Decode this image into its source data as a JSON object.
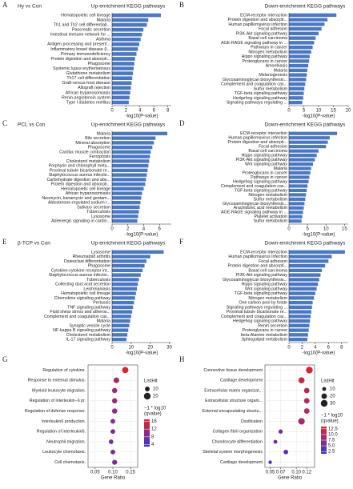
{
  "chart_data": [
    {
      "type": "bar",
      "label": "A",
      "group": "Hy vs Con",
      "title": "Up-enrichment KEGG pathways",
      "xlabel": "-log10(P-value)",
      "color": "#4a78c4",
      "categories": [
        "Hematopoietic cell lineage",
        "Malaria",
        "Th1 and Th2 cell differentiati...",
        "Pancreatic secretion",
        "Intestinal immune network for ...",
        "Asthma",
        "Antigen processing and present...",
        "Inflammatory bowel disease (I...",
        "Primary immunodeficiency",
        "Protein digestion and absorpti...",
        "Phagosome",
        "Systemic lupus erythematosus",
        "Glutathione metabolism",
        "Th17 cell differentiation",
        "Graft-versus-host disease",
        "Allograft rejection",
        "African trypanosomiasis",
        "Renin-angiotensin system",
        "Type I diabetes mellitus"
      ],
      "values": [
        7,
        5.2,
        5,
        4.5,
        4.3,
        4.1,
        3.9,
        3.7,
        3.5,
        3.3,
        3.2,
        3.1,
        3,
        2.9,
        2.8,
        2.7,
        2.6,
        2.5,
        2.4
      ],
      "xlim": [
        0,
        8.5
      ],
      "xticks": [
        0,
        2,
        4,
        6,
        8
      ]
    },
    {
      "type": "bar",
      "label": "B",
      "title": "Down-enrichment KEGG pathways",
      "xlabel": "-log10(P-value)",
      "color": "#4a78c4",
      "categories": [
        "ECM-receptor interaction",
        "Protein digestion and absorpti...",
        "Human papillomavirus infection",
        "Focal adhesion",
        "PI3K-Akt signaling pathway",
        "Basal cell carcinoma",
        "AGE-RAGE signaling pathway in ...",
        "Pathways in cancer",
        "Nitrogen metabolism",
        "Hippo signaling pathway",
        "Proteoglycans in cancer",
        "Amoebiasis",
        "Malaria",
        "Melanogenesis",
        "Glycosaminoglycan biosynthesis...",
        "Complement and coagulation cas...",
        "Sulfur metabolism",
        "TGF-beta signaling pathway",
        "Hedgehog signaling pathway",
        "Signaling pathways regulating ..."
      ],
      "values": [
        16,
        13,
        12,
        11,
        10,
        9,
        8.5,
        8,
        7.5,
        7,
        6.8,
        6.5,
        6.2,
        6,
        5.8,
        5.5,
        5.2,
        5,
        4.8,
        4.5
      ],
      "xlim": [
        0,
        20
      ],
      "xticks": [
        0,
        5,
        10,
        15,
        20
      ]
    },
    {
      "type": "bar",
      "label": "C",
      "group": "PCL vs Con",
      "title": "Up-enrichment KEGG pathways",
      "xlabel": "-log10(P-value)",
      "color": "#4a78c4",
      "categories": [
        "Malaria",
        "Bile secretion",
        "Mineral absorption",
        "Phagosome",
        "Cardiac muscle contraction",
        "Ferroptosis",
        "Cholesterol metabolism",
        "Porphyrin and chlorophyll meta...",
        "Proximal tubule bicarbonate re...",
        "Staphylococcus aureus infectio...",
        "Carbohydrate digestion and abs...",
        "Protein digestion and absorpti...",
        "Hematopoietic cell lineage",
        "African trypanosomiasis",
        "Neomycin, kanamycin and gentam...",
        "Aldosterone-regulated sodium r...",
        "Salivary secretion",
        "Tuberculosis",
        "Lysosome",
        "Adrenergic signaling in cardio..."
      ],
      "values": [
        7,
        5.5,
        5.3,
        5.1,
        4.9,
        4.8,
        4.7,
        4.6,
        4.5,
        4.4,
        4.3,
        4.2,
        4,
        3.8,
        3.7,
        3.6,
        3.5,
        3.4,
        3.3,
        3.2
      ],
      "xlim": [
        0,
        7.5
      ],
      "xticks": [
        0,
        2,
        4,
        6
      ]
    },
    {
      "type": "bar",
      "label": "D",
      "title": "Down-enrichment KEGG pathways",
      "xlabel": "-log10(P-value)",
      "color": "#4a78c4",
      "categories": [
        "ECM-receptor interaction",
        "Human papillomavirus infection",
        "Protein digestion and absorpti...",
        "Focal adhesion",
        "Basal cell carcinoma",
        "Hippo signaling pathway",
        "PI3K-Akt signaling pathway",
        "Wnt signaling pathway",
        "Malaria",
        "Proteoglycans in cancer",
        "Pathways in cancer",
        "Hedgehog signaling pathway",
        "Complement and coagulation cas...",
        "TGF-beta signaling pathway",
        "Nitrogen metabolism",
        "Sulfur metabolism",
        "Glycosaminoglycan biosynthesis...",
        "Arachidonic acid metabolism",
        "AGE-RAGE signaling pathway in ...",
        "Platelet activation",
        "Sulfur metabolism"
      ],
      "values": [
        13,
        11,
        10.5,
        10,
        8,
        7.5,
        7,
        6.5,
        6,
        5.8,
        5.5,
        5.3,
        5,
        4.8,
        4.6,
        4.4,
        4.2,
        4,
        3.8,
        3.6,
        3.4
      ],
      "xlim": [
        0,
        16
      ],
      "xticks": [
        0,
        5,
        10,
        15
      ]
    },
    {
      "type": "bar",
      "label": "E",
      "group": "β-TCP vs Con",
      "title": "Up-enrichment KEGG pathways",
      "xlabel": "-log10(P-value)",
      "color": "#4a78c4",
      "categories": [
        "Lysosome",
        "Rheumatoid arthritis",
        "Osteoclast differentiation",
        "Phagosome",
        "Cytokine-cytokine receptor int...",
        "Staphylococcus aureus infectio...",
        "Tuberculosis",
        "Collecting duct acid secretion",
        "Leishmaniasis",
        "Hematopoietic cell lineage",
        "Chemokine signaling pathway",
        "Pertussis",
        "TNF signaling pathway",
        "Fluid shear stress and atheros...",
        "Complement and coagulation cas...",
        "Malaria",
        "Synaptic vesicle cycle",
        "NF-kappa B signaling pathway",
        "Cholesterol metabolism",
        "IL-17 signaling pathway"
      ],
      "values": [
        27,
        20,
        18,
        17,
        16,
        15,
        14,
        13.5,
        13,
        12.5,
        12,
        11.5,
        11,
        10.5,
        10,
        9.5,
        9,
        8.5,
        8,
        7.5
      ],
      "xlim": [
        0,
        31
      ],
      "xticks": [
        0,
        10,
        20,
        30
      ]
    },
    {
      "type": "bar",
      "label": "F",
      "title": "Down-enrichment KEGG pathways",
      "xlabel": "-log10(P-value)",
      "color": "#4a78c4",
      "categories": [
        "ECM-receptor interaction",
        "Human papillomavirus infection",
        "Focal adhesion",
        "Protein digestion and absorpti...",
        "Basal cell carcinoma",
        "PI3K-Akt signaling pathway",
        "Glycosaminoglycan biosynthesis...",
        "Hippo signaling pathway",
        "Wnt signaling pathway",
        "TGF-beta signaling pathway",
        "Nitrogen metabolism",
        "One carbon pool by folate",
        "Signaling pathways regulating ...",
        "Proximal tubule bicarbonate re...",
        "Complement and coagulation cas...",
        "Hedgehog signaling pathway",
        "Renin secretion",
        "Proteoglycans in cancer",
        "beta-Alanine metabolism",
        "Sphingolipid metabolism"
      ],
      "values": [
        8.5,
        6.5,
        6,
        5.5,
        5,
        4.8,
        4.6,
        4.4,
        4.2,
        4,
        3.8,
        3.6,
        3.5,
        3.4,
        3.3,
        3.2,
        3.1,
        3,
        2.9,
        2.8
      ],
      "xlim": [
        0,
        9
      ],
      "xticks": [
        0,
        2,
        4,
        6,
        8
      ]
    },
    {
      "type": "dot",
      "label": "G",
      "xlabel": "Gene Ratio",
      "grid": true,
      "categories": [
        "Regulation of cytokine.",
        "Response to external stimulus.",
        "Myeloid leukocyte migration.",
        "Regulation of interleukin−6 pr.",
        "Regulation of defense response.",
        "Interleukin6 production.",
        "Regulation of interleukin6.",
        "Neutrophil migration.",
        "Leukocyte chemotaxis.",
        "Cell chemotaxis."
      ],
      "values": [
        0.135,
        0.11,
        0.105,
        0.105,
        0.105,
        0.1,
        0.1,
        0.095,
        0.1,
        0.105
      ],
      "sizes": [
        17,
        14,
        12,
        12,
        12,
        10,
        10,
        9,
        10,
        11
      ],
      "qvalues": [
        16,
        12,
        11,
        11,
        10,
        9,
        9,
        8,
        8,
        8
      ],
      "xlim": [
        0.03,
        0.17
      ],
      "xticks": [
        0.05,
        {
          "value": 0.1,
          "label": "0.10"
        },
        0.15
      ],
      "size_title": "ListHit",
      "size_ticks": [
        10,
        20
      ],
      "color_title": [
        "−1 * log10",
        "(qvalue)"
      ],
      "colors": [
        "#e8232a",
        "#3434d6"
      ],
      "clim": [
        3,
        17
      ],
      "color_ticks": [
        16,
        12,
        8,
        4
      ]
    },
    {
      "type": "dot",
      "label": "H",
      "xlabel": "Gene Ratio",
      "grid": true,
      "categories": [
        "Connective tissue development",
        "Cartilage development",
        "Extracellular matrix organizat...",
        "Extracellular structure organi...",
        "External encapsulating structu...",
        "Ossification",
        "Collagen fibril organization",
        "Chondrocyte differentiation",
        "Skeletal system morphogenesis",
        "Cartilage development"
      ],
      "values": [
        0.125,
        0.11,
        0.12,
        0.12,
        0.12,
        0.11,
        0.07,
        0.06,
        0.08,
        0.05
      ],
      "sizes": [
        30,
        25,
        20,
        20,
        20,
        28,
        12,
        10,
        14,
        8
      ],
      "qvalues": [
        12.5,
        11,
        10,
        10,
        10,
        9,
        6,
        5,
        4,
        3
      ],
      "xlim": [
        0.04,
        0.135
      ],
      "xticks": [
        0.05,
        0.07,
        {
          "value": 0.1,
          "label": "0.10"
        },
        0.12
      ],
      "size_title": "ListHit",
      "size_ticks": [
        10,
        20,
        30
      ],
      "color_title": [
        "−1 * log10",
        "(qvalue)"
      ],
      "colors": [
        "#e8232a",
        "#3434d6"
      ],
      "clim": [
        1.5,
        13.5
      ],
      "color_ticks": [
        {
          "value": 12.5,
          "label": "12.5"
        },
        {
          "value": 10,
          "label": "10.0"
        },
        {
          "value": 7.5,
          "label": "7.5"
        },
        {
          "value": 5,
          "label": "5.0"
        },
        {
          "value": 2.5,
          "label": "2.5"
        }
      ]
    }
  ]
}
